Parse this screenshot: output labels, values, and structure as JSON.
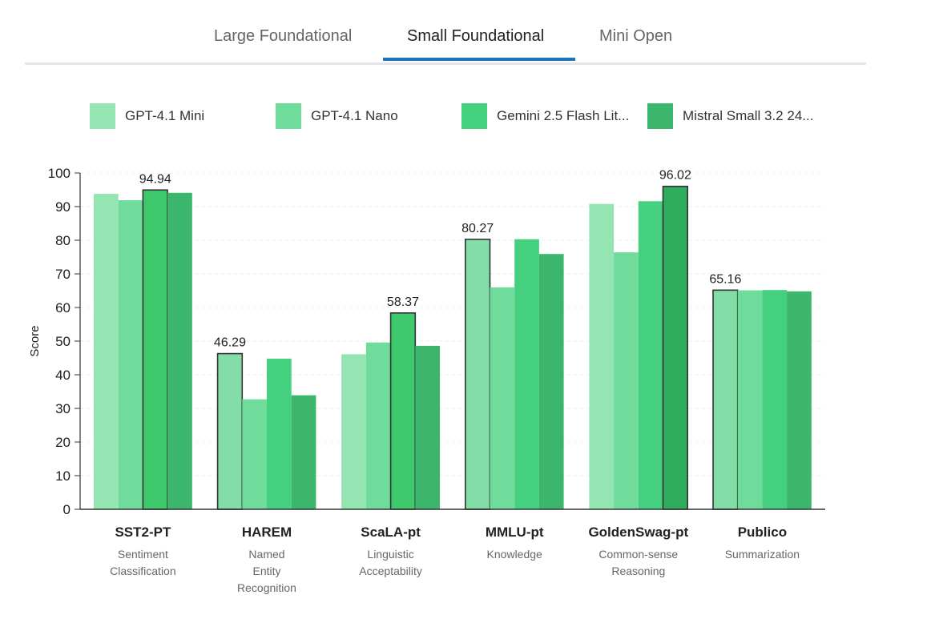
{
  "tabs": {
    "items": [
      {
        "label": "Large Foundational"
      },
      {
        "label": "Small Foundational"
      },
      {
        "label": "Mini Open"
      }
    ],
    "active_index": 1,
    "accent_color": "#1e73be"
  },
  "legend": {
    "items": [
      {
        "label": "GPT-4.1 Mini",
        "color": "#95e5b2"
      },
      {
        "label": "GPT-4.1 Nano",
        "color": "#6fdc9c"
      },
      {
        "label": "Gemini 2.5 Flash Lit...",
        "color": "#45d07f"
      },
      {
        "label": "Mistral Small 3.2 24...",
        "color": "#3cb66d"
      }
    ]
  },
  "chart_data": {
    "type": "bar",
    "ylabel": "Score",
    "ylim": [
      0,
      100
    ],
    "yticks": [
      0,
      10,
      20,
      30,
      40,
      50,
      60,
      70,
      80,
      90,
      100
    ],
    "grid": true,
    "categories": [
      {
        "name": "SST2-PT",
        "subtitle": [
          "Sentiment",
          "Classification"
        ]
      },
      {
        "name": "HAREM",
        "subtitle": [
          "Named",
          "Entity",
          "Recognition"
        ]
      },
      {
        "name": "ScaLA-pt",
        "subtitle": [
          "Linguistic",
          "Acceptability"
        ]
      },
      {
        "name": "MMLU-pt",
        "subtitle": [
          "Knowledge"
        ]
      },
      {
        "name": "GoldenSwag-pt",
        "subtitle": [
          "Common-sense",
          "Reasoning"
        ]
      },
      {
        "name": "Publico",
        "subtitle": [
          "Summarization"
        ]
      }
    ],
    "series": [
      {
        "name": "GPT-4.1 Mini",
        "color": "#95e5b2",
        "highlight_color": "#82dea6",
        "values": [
          93.8,
          46.29,
          46.1,
          80.27,
          90.8,
          65.16
        ]
      },
      {
        "name": "GPT-4.1 Nano",
        "color": "#6fdc9c",
        "highlight_color": "#6fdc9c",
        "values": [
          91.9,
          32.7,
          49.6,
          66.0,
          76.4,
          65.1
        ]
      },
      {
        "name": "Gemini 2.5 Flash Lite",
        "color": "#45d07f",
        "highlight_color": "#3ec96d",
        "values": [
          94.94,
          44.8,
          58.37,
          80.3,
          91.6,
          65.2
        ]
      },
      {
        "name": "Mistral Small 3.2 24B",
        "color": "#3cb66d",
        "highlight_color": "#2fac5e",
        "values": [
          94.1,
          33.9,
          48.6,
          75.9,
          96.02,
          64.8
        ]
      }
    ],
    "best": [
      {
        "category_index": 0,
        "series_index": 2,
        "label": "94.94"
      },
      {
        "category_index": 1,
        "series_index": 0,
        "label": "46.29"
      },
      {
        "category_index": 2,
        "series_index": 2,
        "label": "58.37"
      },
      {
        "category_index": 3,
        "series_index": 0,
        "label": "80.27"
      },
      {
        "category_index": 4,
        "series_index": 3,
        "label": "96.02"
      },
      {
        "category_index": 5,
        "series_index": 0,
        "label": "65.16"
      }
    ]
  }
}
